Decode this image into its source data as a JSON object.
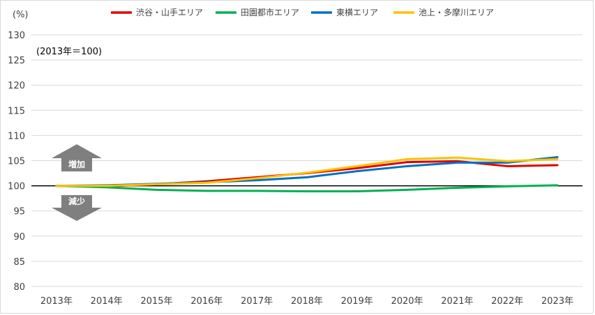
{
  "chart_data": {
    "type": "line",
    "ylabel": "(%)",
    "annotation": "(2013年＝100)",
    "categories": [
      "2013年",
      "2014年",
      "2015年",
      "2016年",
      "2017年",
      "2018年",
      "2019年",
      "2020年",
      "2021年",
      "2022年",
      "2023年"
    ],
    "ylim": [
      80,
      130
    ],
    "yticks": [
      80,
      85,
      90,
      95,
      100,
      105,
      110,
      115,
      120,
      125,
      130
    ],
    "baseline": 100,
    "grid": true,
    "legend_position": "top",
    "series": [
      {
        "name": "渋谷・山手エリア",
        "color": "#e00000",
        "values": [
          100.0,
          99.9,
          100.3,
          100.9,
          101.7,
          102.5,
          103.5,
          104.7,
          104.9,
          103.9,
          104.1
        ]
      },
      {
        "name": "田園都市エリア",
        "color": "#00b050",
        "values": [
          100.0,
          99.7,
          99.2,
          99.0,
          99.0,
          98.9,
          98.9,
          99.2,
          99.6,
          99.9,
          100.1
        ]
      },
      {
        "name": "東横エリア",
        "color": "#0070c0",
        "values": [
          100.0,
          100.1,
          100.4,
          100.7,
          101.1,
          101.7,
          102.9,
          103.9,
          104.6,
          104.6,
          105.7
        ]
      },
      {
        "name": "池上・多摩川エリア",
        "color": "#ffc000",
        "values": [
          100.0,
          100.0,
          100.3,
          100.6,
          101.5,
          102.6,
          103.9,
          105.3,
          105.6,
          104.9,
          105.3
        ]
      }
    ],
    "arrows": {
      "up_label": "増加",
      "down_label": "減少",
      "arrow_color": "#7f7f7f"
    }
  }
}
